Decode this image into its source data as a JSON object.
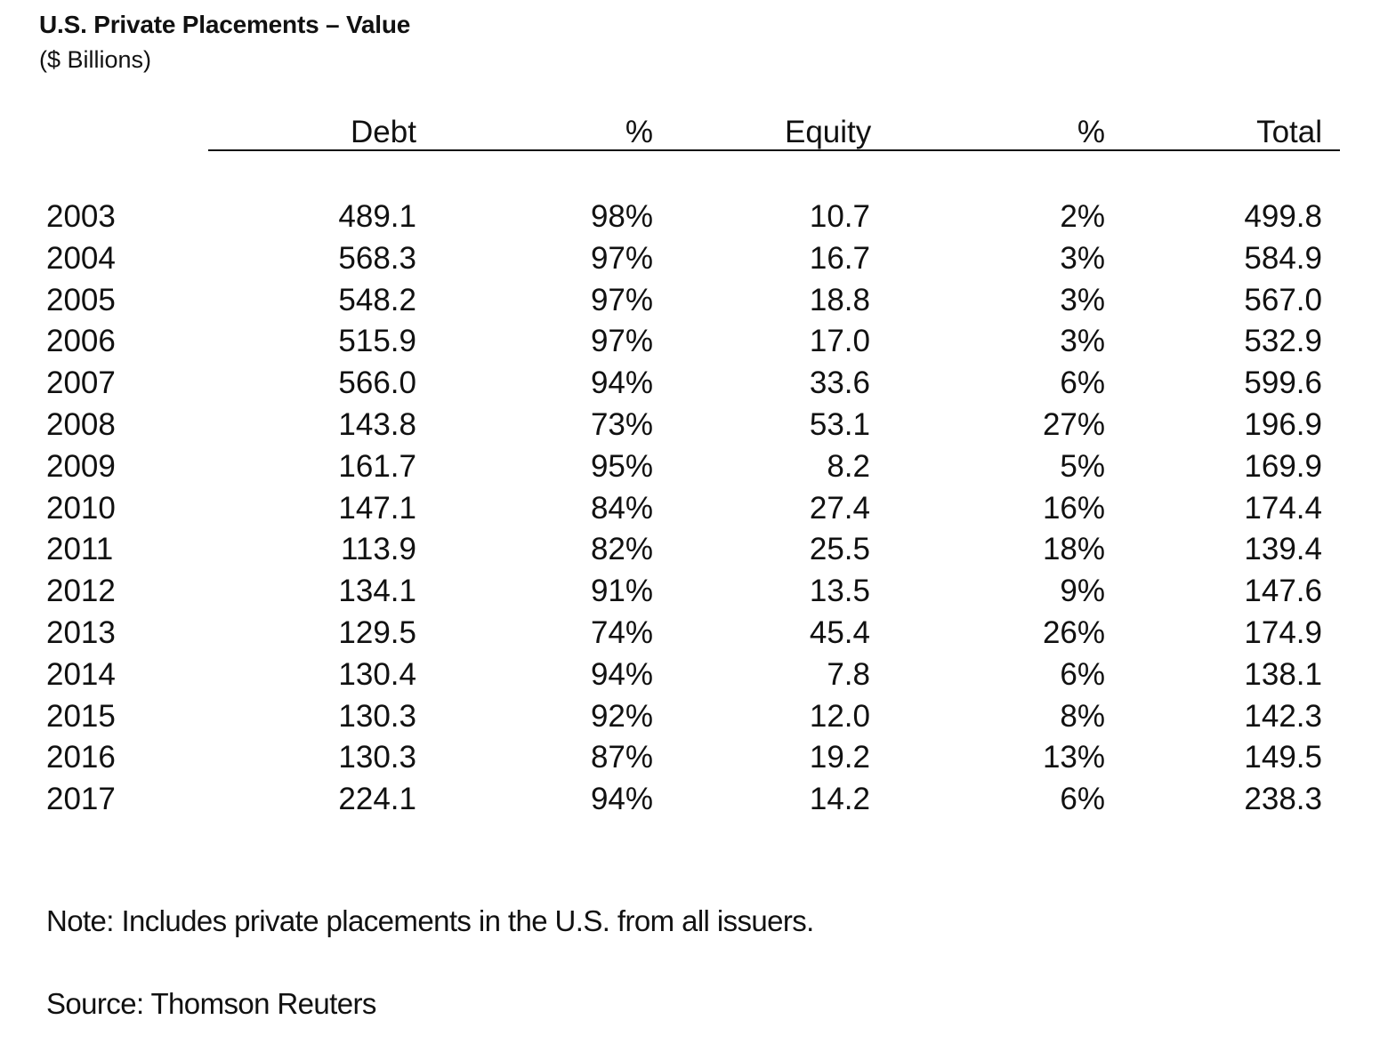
{
  "document": {
    "title": "U.S. Private Placements – Value",
    "subtitle": "($ Billions)",
    "columns": {
      "debt": "Debt",
      "debt_pct": "%",
      "equity": "Equity",
      "equity_pct": "%",
      "total": "Total"
    },
    "rows": [
      {
        "year": "2003",
        "debt": "489.1",
        "debt_pct": "98%",
        "equity": "10.7",
        "equity_pct": "2%",
        "total": "499.8"
      },
      {
        "year": "2004",
        "debt": "568.3",
        "debt_pct": "97%",
        "equity": "16.7",
        "equity_pct": "3%",
        "total": "584.9"
      },
      {
        "year": "2005",
        "debt": "548.2",
        "debt_pct": "97%",
        "equity": "18.8",
        "equity_pct": "3%",
        "total": "567.0"
      },
      {
        "year": "2006",
        "debt": "515.9",
        "debt_pct": "97%",
        "equity": "17.0",
        "equity_pct": "3%",
        "total": "532.9"
      },
      {
        "year": "2007",
        "debt": "566.0",
        "debt_pct": "94%",
        "equity": "33.6",
        "equity_pct": "6%",
        "total": "599.6"
      },
      {
        "year": "2008",
        "debt": "143.8",
        "debt_pct": "73%",
        "equity": "53.1",
        "equity_pct": "27%",
        "total": "196.9"
      },
      {
        "year": "2009",
        "debt": "161.7",
        "debt_pct": "95%",
        "equity": "8.2",
        "equity_pct": "5%",
        "total": "169.9"
      },
      {
        "year": "2010",
        "debt": "147.1",
        "debt_pct": "84%",
        "equity": "27.4",
        "equity_pct": "16%",
        "total": "174.4"
      },
      {
        "year": "2011",
        "debt": "113.9",
        "debt_pct": "82%",
        "equity": "25.5",
        "equity_pct": "18%",
        "total": "139.4"
      },
      {
        "year": "2012",
        "debt": "134.1",
        "debt_pct": "91%",
        "equity": "13.5",
        "equity_pct": "9%",
        "total": "147.6"
      },
      {
        "year": "2013",
        "debt": "129.5",
        "debt_pct": "74%",
        "equity": "45.4",
        "equity_pct": "26%",
        "total": "174.9"
      },
      {
        "year": "2014",
        "debt": "130.4",
        "debt_pct": "94%",
        "equity": "7.8",
        "equity_pct": "6%",
        "total": "138.1"
      },
      {
        "year": "2015",
        "debt": "130.3",
        "debt_pct": "92%",
        "equity": "12.0",
        "equity_pct": "8%",
        "total": "142.3"
      },
      {
        "year": "2016",
        "debt": "130.3",
        "debt_pct": "87%",
        "equity": "19.2",
        "equity_pct": "13%",
        "total": "149.5"
      },
      {
        "year": "2017",
        "debt": "224.1",
        "debt_pct": "94%",
        "equity": "14.2",
        "equity_pct": "6%",
        "total": "238.3"
      }
    ],
    "note": "Note: Includes private placements in the U.S. from all issuers.",
    "source": "Source: Thomson Reuters"
  }
}
